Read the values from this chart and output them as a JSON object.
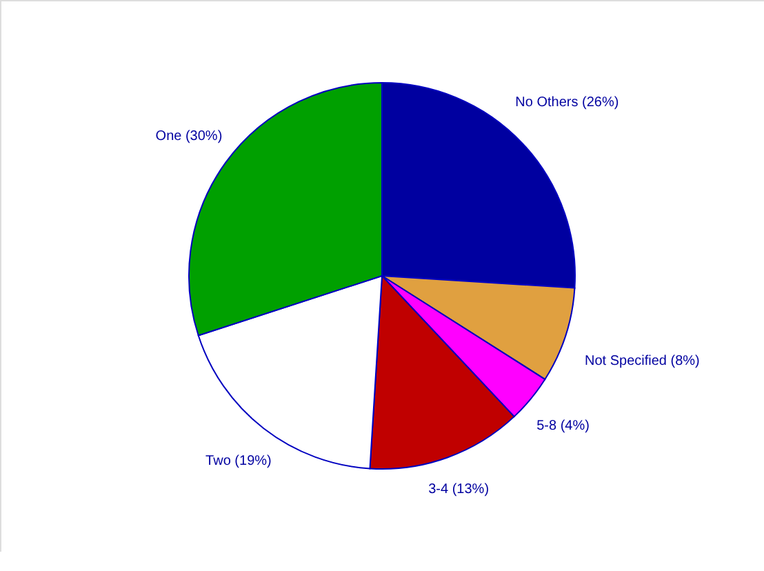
{
  "chart_data": {
    "type": "pie",
    "categories": [
      "No Others",
      "Not Specified",
      "5-8",
      "3-4",
      "Two",
      "One"
    ],
    "values": [
      26,
      8,
      4,
      13,
      19,
      30
    ],
    "value_labels": [
      "(26%)",
      "(8%)",
      "(4%)",
      "(13%)",
      "(19%)",
      "(30%)"
    ],
    "colors": [
      "#0000a0",
      "#e0a040",
      "#ff00ff",
      "#c00000",
      "#ffffff",
      "#00a000"
    ]
  }
}
